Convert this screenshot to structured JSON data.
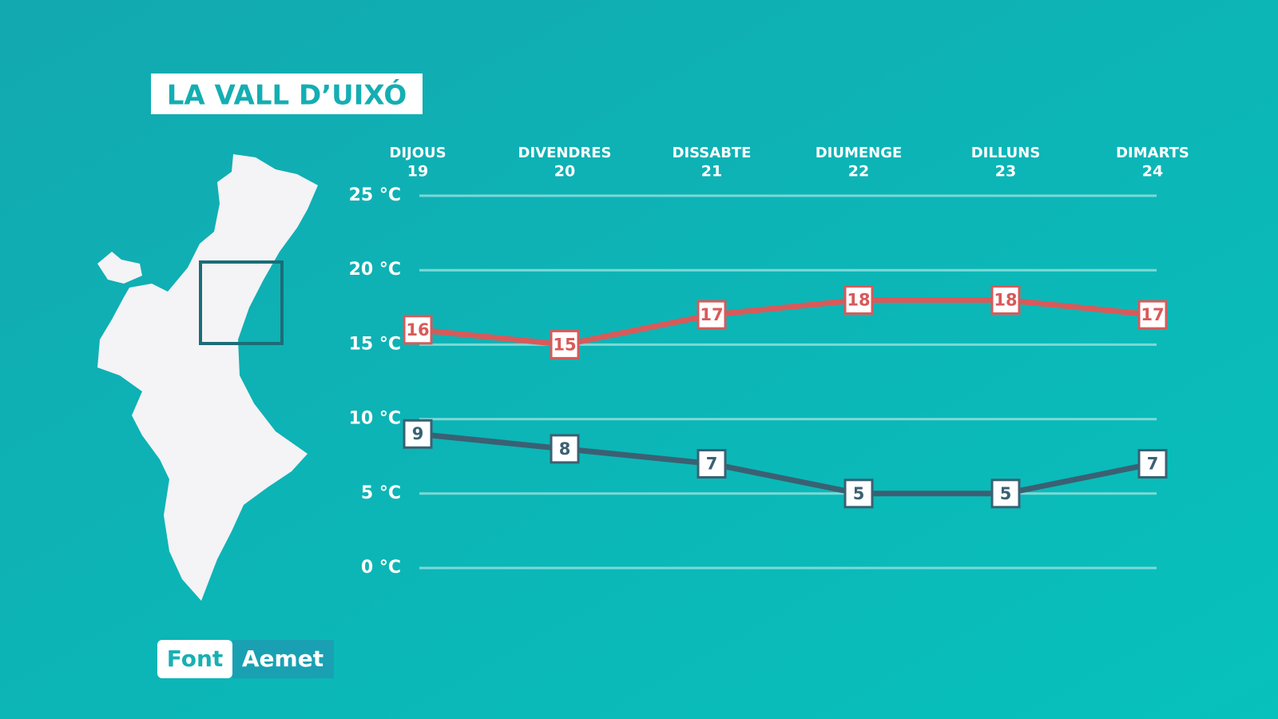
{
  "chart_data": {
    "type": "line",
    "title": "LA VALL D’UIXÓ",
    "categories": [
      "DIJOUS",
      "DIVENDRES",
      "DISSABTE",
      "DIUMENGE",
      "DILLUNS",
      "DIMARTS"
    ],
    "dates": [
      19,
      20,
      21,
      22,
      23,
      24
    ],
    "series": [
      {
        "color": "#d85a5a",
        "values": [
          16,
          15,
          17,
          18,
          18,
          17
        ]
      },
      {
        "color": "#3a6173",
        "values": [
          9,
          8,
          7,
          5,
          5,
          7
        ]
      }
    ],
    "ylim": [
      0,
      25
    ],
    "yticks": [
      {
        "value": 0,
        "label": "0 °C"
      },
      {
        "value": 5,
        "label": "5 °C"
      },
      {
        "value": 10,
        "label": "10 °C"
      },
      {
        "value": 15,
        "label": "15 °C"
      },
      {
        "value": 20,
        "label": "20 °C"
      },
      {
        "value": 25,
        "label": "25 °C"
      }
    ],
    "grid": true,
    "source_label": "Font",
    "source": "Aemet"
  }
}
